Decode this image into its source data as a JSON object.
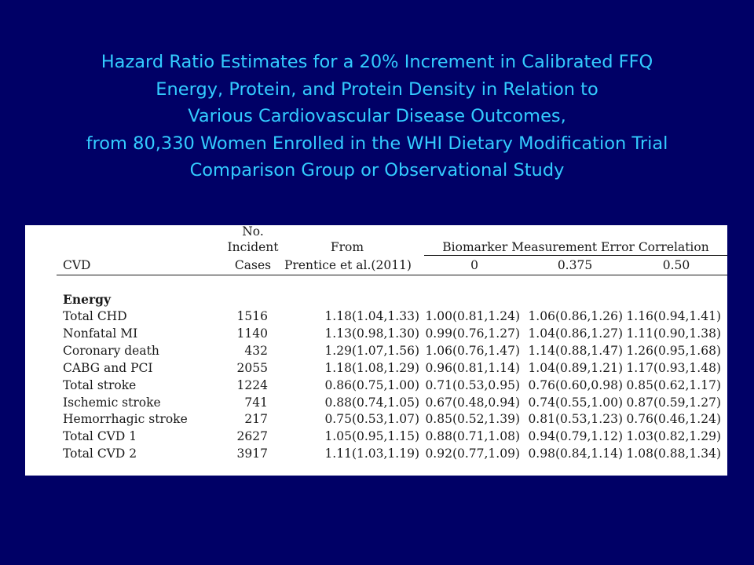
{
  "title": {
    "lines": [
      "Hazard Ratio Estimates for a 20% Increment in Calibrated FFQ",
      "Energy, Protein, and Protein Density in Relation to",
      "Various Cardiovascular Disease Outcomes,",
      "from 80,330 Women Enrolled in the WHI Dietary Modification Trial",
      "Comparison Group or Observational Study"
    ]
  },
  "table": {
    "header": {
      "cvd": "CVD",
      "cases_line1": "No.",
      "cases_line2": "Incident",
      "cases_line3": "Cases",
      "from_line1": "From",
      "from_line2": "Prentice et al.(2011)",
      "biomarker_span": "Biomarker Measurement Error Correlation",
      "corr_0": "0",
      "corr_0375": "0.375",
      "corr_050": "0.50"
    },
    "section_label": "Energy",
    "rows": [
      {
        "cvd": "Total CHD",
        "cases": "1516",
        "prentice": "1.18(1.04,1.33)",
        "c0": "1.00(0.81,1.24)",
        "c375": "1.06(0.86,1.26)",
        "c50": "1.16(0.94,1.41)"
      },
      {
        "cvd": "Nonfatal MI",
        "cases": "1140",
        "prentice": "1.13(0.98,1.30)",
        "c0": "0.99(0.76,1.27)",
        "c375": "1.04(0.86,1.27)",
        "c50": "1.11(0.90,1.38)"
      },
      {
        "cvd": "Coronary death",
        "cases": "432",
        "prentice": "1.29(1.07,1.56)",
        "c0": "1.06(0.76,1.47)",
        "c375": "1.14(0.88,1.47)",
        "c50": "1.26(0.95,1.68)"
      },
      {
        "cvd": "CABG and PCI",
        "cases": "2055",
        "prentice": "1.18(1.08,1.29)",
        "c0": "0.96(0.81,1.14)",
        "c375": "1.04(0.89,1.21)",
        "c50": "1.17(0.93,1.48)"
      },
      {
        "cvd": "Total stroke",
        "cases": "1224",
        "prentice": "0.86(0.75,1.00)",
        "c0": "0.71(0.53,0.95)",
        "c375": "0.76(0.60,0.98)",
        "c50": "0.85(0.62,1.17)"
      },
      {
        "cvd": "Ischemic stroke",
        "cases": "741",
        "prentice": "0.88(0.74,1.05)",
        "c0": "0.67(0.48,0.94)",
        "c375": "0.74(0.55,1.00)",
        "c50": "0.87(0.59,1.27)"
      },
      {
        "cvd": "Hemorrhagic stroke",
        "cases": "217",
        "prentice": "0.75(0.53,1.07)",
        "c0": "0.85(0.52,1.39)",
        "c375": "0.81(0.53,1.23)",
        "c50": "0.76(0.46,1.24)"
      },
      {
        "cvd": "Total CVD 1",
        "cases": "2627",
        "prentice": "1.05(0.95,1.15)",
        "c0": "0.88(0.71,1.08)",
        "c375": "0.94(0.79,1.12)",
        "c50": "1.03(0.82,1.29)"
      },
      {
        "cvd": "Total CVD 2",
        "cases": "3917",
        "prentice": "1.11(1.03,1.19)",
        "c0": "0.92(0.77,1.09)",
        "c375": "0.98(0.84,1.14)",
        "c50": "1.08(0.88,1.34)"
      }
    ]
  },
  "colors": {
    "background": "#000066",
    "title": "#33CCFF",
    "panel": "#ffffff",
    "text": "#1a1a1a"
  }
}
